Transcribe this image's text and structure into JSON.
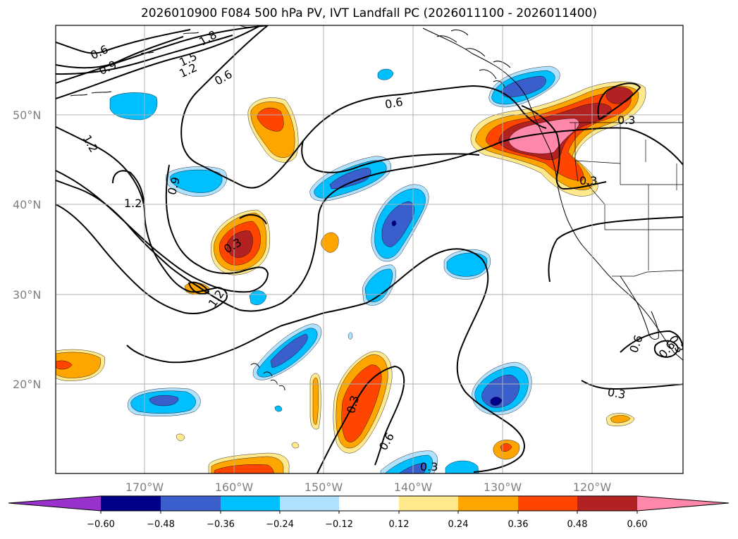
{
  "title": "2026010900 F084 500 hPa PV, IVT Landfall PC (2026011100 - 2026011400)",
  "axes": {
    "lat_labels": [
      "50°N",
      "40°N",
      "30°N",
      "20°N"
    ],
    "lon_labels": [
      "170°W",
      "160°W",
      "150°W",
      "140°W",
      "130°W",
      "120°W"
    ]
  },
  "contour_labels": [
    "1.8",
    "0.6",
    "1.5",
    "0.9",
    "1.2",
    "0.6",
    "0.6",
    "1.2",
    "0.9",
    "1.2",
    "0.3",
    "1.2",
    "0.3",
    "0.3",
    "0.3",
    "0.6",
    "0.3",
    "0.6",
    "0.3",
    "0.6",
    "0.3"
  ],
  "colorbar": {
    "ticks": [
      "−0.60",
      "−0.48",
      "−0.36",
      "−0.24",
      "−0.12",
      "0.12",
      "0.24",
      "0.36",
      "0.48",
      "0.60"
    ],
    "colors": [
      "#9932cc",
      "#00008b",
      "#3a5fcd",
      "#00bfff",
      "#b0e2ff",
      "#ffffff",
      "#ffe98c",
      "#ffa500",
      "#ff4500",
      "#b22222",
      "#ff88aa"
    ]
  },
  "palette": {
    "pos1": "#ffe98c",
    "pos2": "#ffa500",
    "pos3": "#ff4500",
    "pos4": "#b22222",
    "pos5": "#ff88aa",
    "neg1": "#b0e2ff",
    "neg2": "#00bfff",
    "neg3": "#3a5fcd",
    "neg4": "#00008b"
  }
}
